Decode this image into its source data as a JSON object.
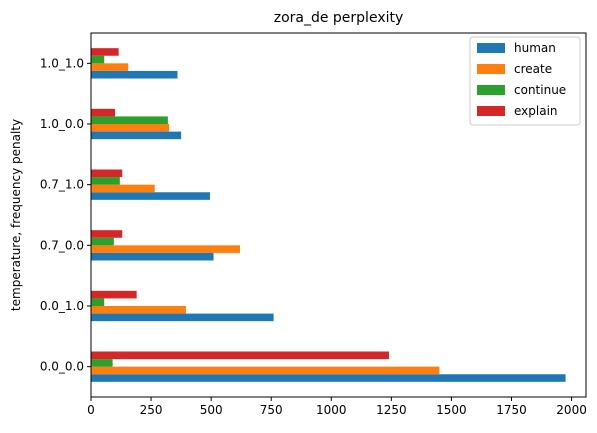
{
  "chart_data": {
    "type": "bar",
    "orientation": "horizontal",
    "title": "zora_de perplexity",
    "xlabel": "",
    "ylabel": "temperature, frequency penalty",
    "categories": [
      "0.0_0.0",
      "0.0_1.0",
      "0.7_0.0",
      "0.7_1.0",
      "1.0_0.0",
      "1.0_1.0"
    ],
    "xlim": [
      0,
      2060
    ],
    "xticks": [
      0,
      250,
      500,
      750,
      1000,
      1250,
      1500,
      1750,
      2000
    ],
    "grid": false,
    "legend_position": "top-right",
    "series": [
      {
        "name": "human",
        "color": "#1f77b4",
        "values": [
          1975,
          760,
          510,
          495,
          375,
          360
        ]
      },
      {
        "name": "create",
        "color": "#ff7f0e",
        "values": [
          1450,
          395,
          620,
          265,
          325,
          155
        ]
      },
      {
        "name": "continue",
        "color": "#2ca02c",
        "values": [
          90,
          55,
          95,
          120,
          320,
          55
        ]
      },
      {
        "name": "explain",
        "color": "#d62728",
        "values": [
          1240,
          190,
          130,
          130,
          100,
          115
        ]
      }
    ]
  }
}
